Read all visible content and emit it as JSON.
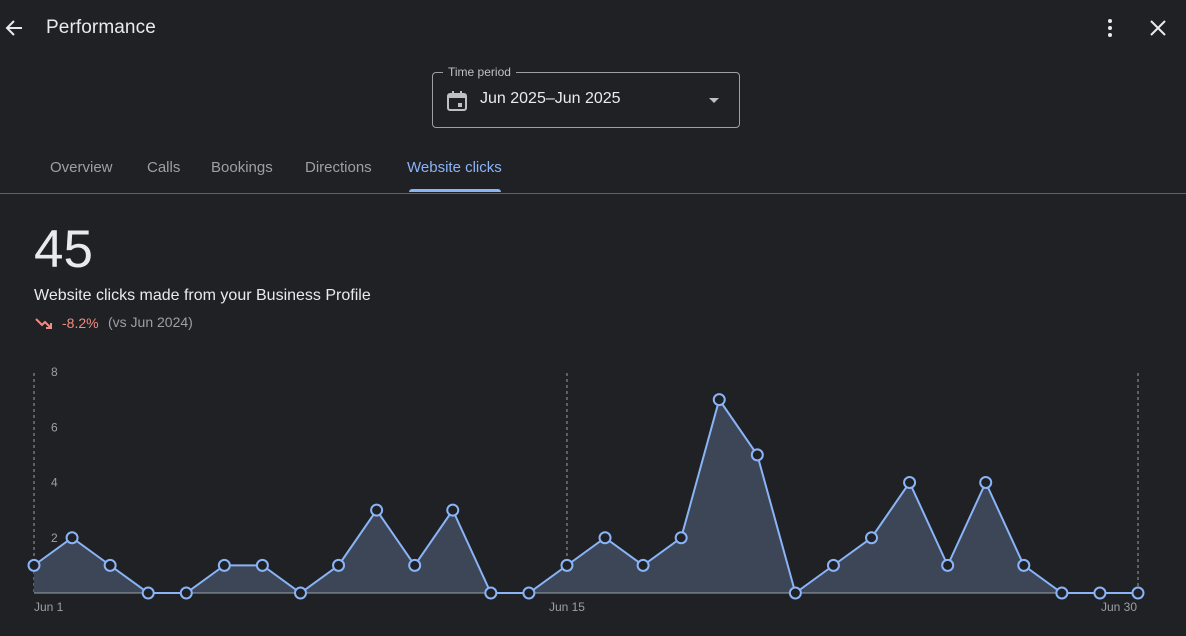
{
  "header": {
    "title": "Performance",
    "back_icon": "arrow-back-icon",
    "more_icon": "more-vert-icon",
    "close_icon": "close-icon"
  },
  "time_period": {
    "label": "Time period",
    "value": "Jun 2025–Jun 2025",
    "icon": "calendar-icon"
  },
  "tabs": [
    {
      "label": "Overview",
      "active": false
    },
    {
      "label": "Calls",
      "active": false
    },
    {
      "label": "Bookings",
      "active": false
    },
    {
      "label": "Directions",
      "active": false
    },
    {
      "label": "Website clicks",
      "active": true
    }
  ],
  "summary": {
    "total": "45",
    "description": "Website clicks made from your Business Profile",
    "change": "-8.2%",
    "comparison": "(vs Jun 2024)",
    "change_color": "#f28b82"
  },
  "chart_data": {
    "type": "area",
    "x": [
      1,
      2,
      3,
      4,
      5,
      6,
      7,
      8,
      9,
      10,
      11,
      12,
      13,
      14,
      15,
      16,
      17,
      18,
      19,
      20,
      21,
      22,
      23,
      24,
      25,
      26,
      27,
      28,
      29,
      30
    ],
    "values": [
      1,
      2,
      1,
      0,
      0,
      1,
      1,
      0,
      1,
      3,
      1,
      3,
      0,
      0,
      1,
      2,
      1,
      2,
      7,
      5,
      0,
      1,
      2,
      4,
      1,
      4,
      1,
      0,
      0,
      0
    ],
    "ylim": [
      0,
      8
    ],
    "yticks": [
      "2",
      "4",
      "6",
      "8"
    ],
    "xtick_labels": [
      {
        "day": 1,
        "label": "Jun 1"
      },
      {
        "day": 15,
        "label": "Jun 15"
      },
      {
        "day": 30,
        "label": "Jun 30"
      }
    ],
    "line_color": "#8ab4f8",
    "fill_color": "#3c4656"
  }
}
